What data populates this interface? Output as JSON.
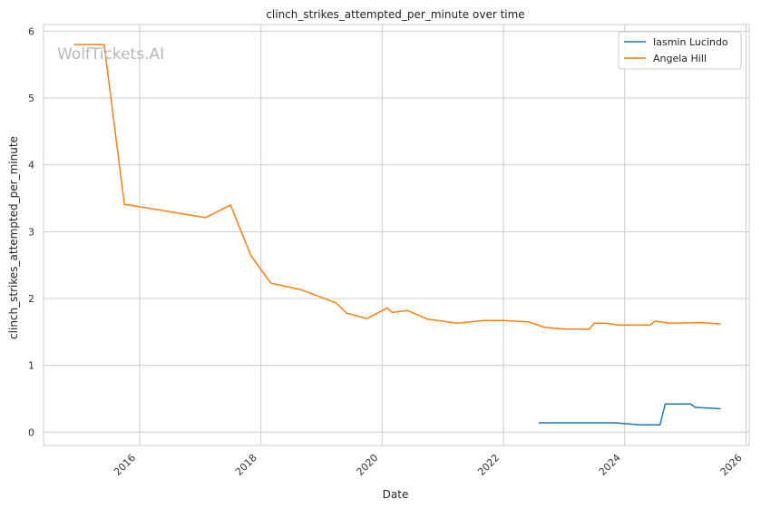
{
  "chart_data": {
    "type": "line",
    "title": "clinch_strikes_attempted_per_minute over time",
    "xlabel": "Date",
    "ylabel": "clinch_strikes_attempted_per_minute",
    "watermark": "WolfTickets.AI",
    "xlim": [
      "2014-06-01",
      "2026-01-20"
    ],
    "ylim": [
      -0.2,
      6.1
    ],
    "x_ticks": [
      "2016",
      "2018",
      "2020",
      "2022",
      "2024",
      "2026"
    ],
    "y_ticks": [
      "0",
      "1",
      "2",
      "3",
      "4",
      "5",
      "6"
    ],
    "grid": true,
    "legend_position": "top-right",
    "series": [
      {
        "name": "Iasmin Lucindo",
        "color": "#1f77b4",
        "points": [
          [
            "2022-08-01",
            0.14
          ],
          [
            "2023-11-01",
            0.14
          ],
          [
            "2024-04-01",
            0.11
          ],
          [
            "2024-08-01",
            0.11
          ],
          [
            "2024-09-01",
            0.42
          ],
          [
            "2025-02-01",
            0.42
          ],
          [
            "2025-03-01",
            0.37
          ],
          [
            "2025-08-01",
            0.35
          ]
        ]
      },
      {
        "name": "Angela Hill",
        "color": "#ff7f0e",
        "points": [
          [
            "2014-12-01",
            5.8
          ],
          [
            "2015-06-01",
            5.8
          ],
          [
            "2015-10-01",
            3.41
          ],
          [
            "2017-02-01",
            3.21
          ],
          [
            "2017-07-01",
            3.4
          ],
          [
            "2017-11-01",
            2.64
          ],
          [
            "2018-03-01",
            2.23
          ],
          [
            "2018-09-01",
            2.13
          ],
          [
            "2019-04-01",
            1.93
          ],
          [
            "2019-06-01",
            1.78
          ],
          [
            "2019-10-01",
            1.7
          ],
          [
            "2020-02-01",
            1.86
          ],
          [
            "2020-03-01",
            1.79
          ],
          [
            "2020-06-01",
            1.82
          ],
          [
            "2020-10-01",
            1.69
          ],
          [
            "2021-04-01",
            1.63
          ],
          [
            "2021-09-01",
            1.67
          ],
          [
            "2022-01-01",
            1.67
          ],
          [
            "2022-06-01",
            1.65
          ],
          [
            "2022-09-01",
            1.57
          ],
          [
            "2023-01-01",
            1.54
          ],
          [
            "2023-06-01",
            1.54
          ],
          [
            "2023-07-01",
            1.63
          ],
          [
            "2023-09-01",
            1.63
          ],
          [
            "2023-12-01",
            1.6
          ],
          [
            "2024-06-01",
            1.6
          ],
          [
            "2024-07-01",
            1.66
          ],
          [
            "2024-10-01",
            1.63
          ],
          [
            "2025-04-01",
            1.64
          ],
          [
            "2025-08-01",
            1.62
          ]
        ]
      }
    ]
  }
}
